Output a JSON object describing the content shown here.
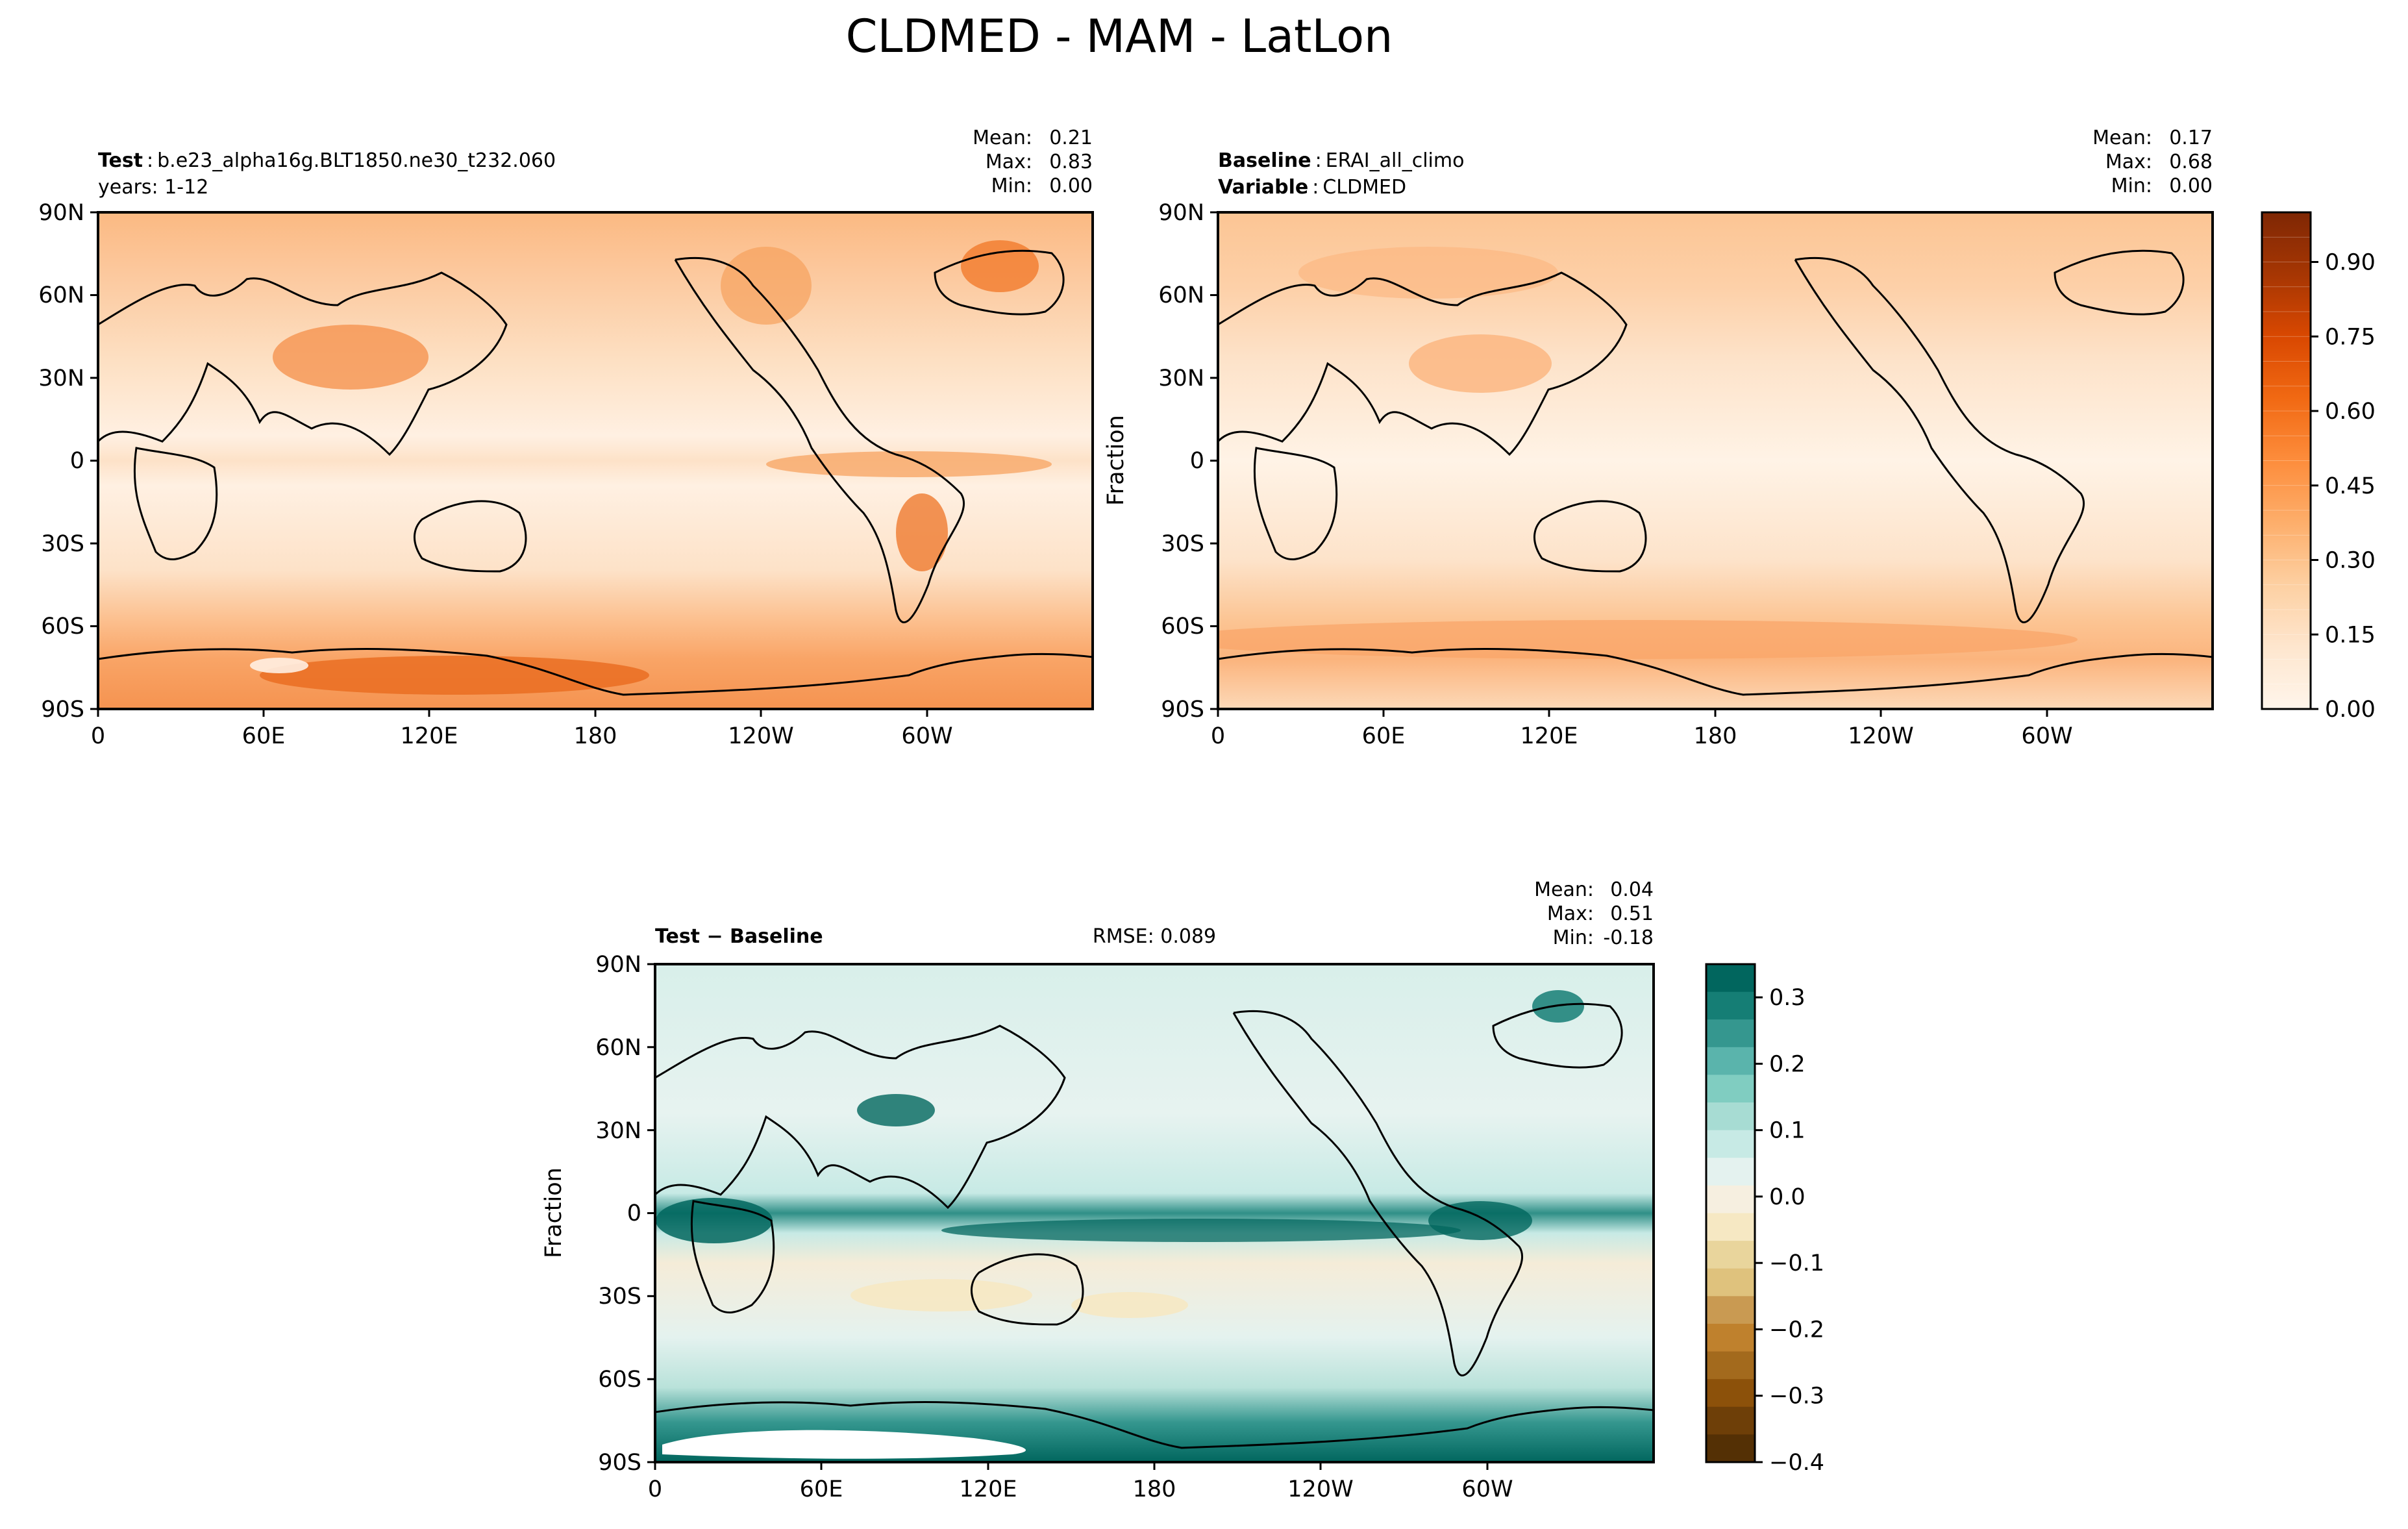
{
  "figure": {
    "title": "CLDMED - MAM - LatLon"
  },
  "chart_data": [
    {
      "type": "heatmap",
      "panel": "test",
      "label_bold": "Test",
      "label_sep": ":",
      "label_value": "b.e23_alpha16g.BLT1850.ne30_t232.060",
      "second_line": "years: 1-12",
      "stats": {
        "mean_label": "Mean:",
        "mean_value": "0.21",
        "max_label": "Max:",
        "max_value": "0.83",
        "min_label": "Min:",
        "min_value": "0.00"
      },
      "ylabel": "",
      "xticks": [
        "0",
        "60E",
        "120E",
        "180",
        "120W",
        "60W"
      ],
      "yticks": [
        "90N",
        "60N",
        "30N",
        "0",
        "30S",
        "60S",
        "90S"
      ],
      "xlim": [
        0,
        360
      ],
      "ylim": [
        -90,
        90
      ],
      "colormap": "Oranges"
    },
    {
      "type": "heatmap",
      "panel": "baseline",
      "label_bold": "Baseline",
      "label_sep": ":",
      "label_value": "ERAI_all_climo",
      "second_bold": "Variable",
      "second_sep": ":",
      "second_value": "CLDMED",
      "stats": {
        "mean_label": "Mean:",
        "mean_value": "0.17",
        "max_label": "Max:",
        "max_value": "0.68",
        "min_label": "Min:",
        "min_value": "0.00"
      },
      "ylabel": "Fraction",
      "xticks": [
        "0",
        "60E",
        "120E",
        "180",
        "120W",
        "60W"
      ],
      "yticks": [
        "90N",
        "60N",
        "30N",
        "0",
        "30S",
        "60S",
        "90S"
      ],
      "xlim": [
        0,
        360
      ],
      "ylim": [
        -90,
        90
      ],
      "colormap": "Oranges",
      "colorbar": {
        "ticks": [
          "0.00",
          "0.15",
          "0.30",
          "0.45",
          "0.60",
          "0.75",
          "0.90"
        ],
        "range": [
          0,
          1
        ],
        "levels": 20,
        "colors": [
          "#fff5eb",
          "#fee6ce",
          "#fdd0a2",
          "#fdae6b",
          "#fd8d3c",
          "#f16913",
          "#d94801",
          "#a63603",
          "#7f2704"
        ]
      }
    },
    {
      "type": "heatmap",
      "panel": "difference",
      "label_bold": "Test − Baseline",
      "rmse": "RMSE: 0.089",
      "stats": {
        "mean_label": "Mean:",
        "mean_value": "0.04",
        "max_label": "Max:",
        "max_value": "0.51",
        "min_label": "Min:",
        "min_value": "-0.18"
      },
      "ylabel": "Fraction",
      "xticks": [
        "0",
        "60E",
        "120E",
        "180",
        "120W",
        "60W"
      ],
      "yticks": [
        "90N",
        "60N",
        "30N",
        "0",
        "30S",
        "60S",
        "90S"
      ],
      "xlim": [
        0,
        360
      ],
      "ylim": [
        -90,
        90
      ],
      "colormap": "BrBG",
      "colorbar": {
        "ticks": [
          "0.3",
          "0.2",
          "0.1",
          "0.0",
          "−0.1",
          "−0.2",
          "−0.3",
          "−0.4"
        ],
        "tick_values": [
          0.3,
          0.2,
          0.1,
          0.0,
          -0.1,
          -0.2,
          -0.3,
          -0.4
        ],
        "range": [
          -0.4,
          0.35
        ],
        "colors": [
          "#01665e",
          "#157e75",
          "#35978f",
          "#5ab4ac",
          "#80cdc1",
          "#a7dcd3",
          "#c7eae5",
          "#e4f2ef",
          "#f6efe0",
          "#f6e8c3",
          "#e9d59c",
          "#dfc27d",
          "#c99a52",
          "#bf812d",
          "#a36a1d",
          "#8c510a",
          "#6e3f08",
          "#543005"
        ]
      }
    }
  ]
}
